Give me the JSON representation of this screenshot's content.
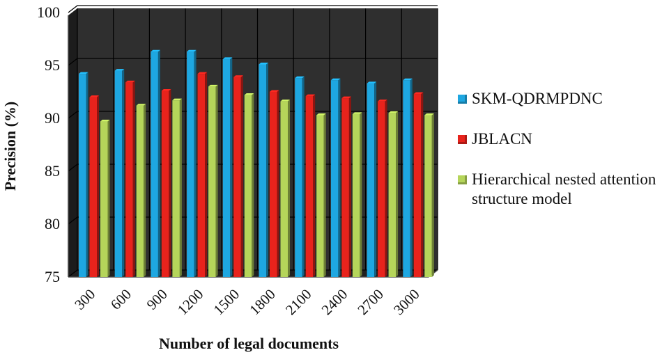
{
  "chart_data": {
    "type": "bar",
    "xlabel": "Number of legal documents",
    "ylabel": "Precision (%)",
    "ylim": [
      75,
      100
    ],
    "yticks": [
      75,
      80,
      85,
      90,
      95,
      100
    ],
    "categories": [
      "300",
      "600",
      "900",
      "1200",
      "1500",
      "1800",
      "2100",
      "2400",
      "2700",
      "3000"
    ],
    "series": [
      {
        "name": "SKM-QDRMPDNC",
        "color": "#1ea7e1",
        "values": [
          94.2,
          94.5,
          96.3,
          96.3,
          95.6,
          95.1,
          93.8,
          93.6,
          93.3,
          93.6
        ]
      },
      {
        "name": "JBLACN",
        "color": "#e8231c",
        "values": [
          92.0,
          93.4,
          92.6,
          94.2,
          93.9,
          92.5,
          92.1,
          91.9,
          91.6,
          92.3
        ]
      },
      {
        "name": "Hierarchical nested attention structure model",
        "color": "#b5d55a",
        "values": [
          89.7,
          91.2,
          91.7,
          93.0,
          92.2,
          91.6,
          90.3,
          90.4,
          90.5,
          90.3
        ]
      }
    ],
    "grid": true,
    "legend_position": "right",
    "background": "#2f2f2f"
  }
}
